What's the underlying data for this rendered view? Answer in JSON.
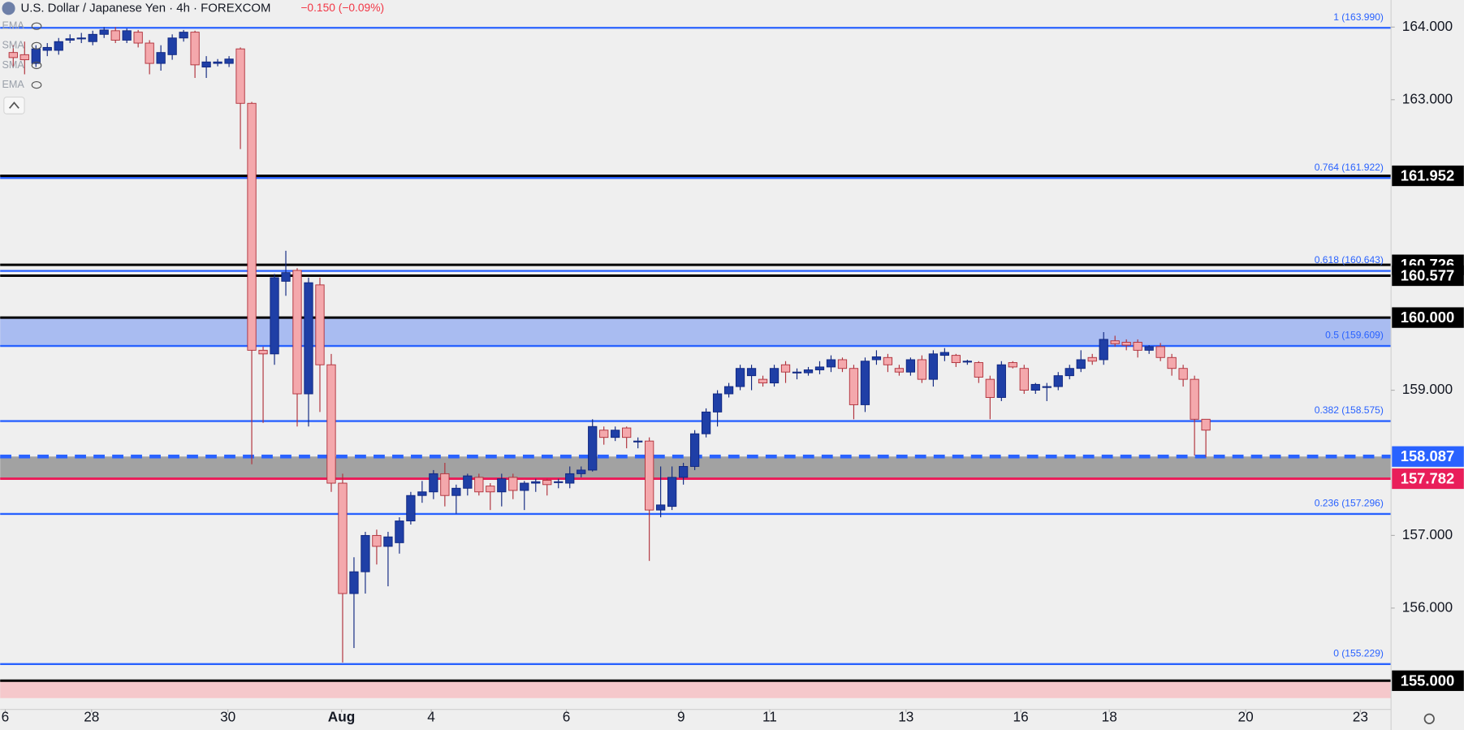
{
  "chart_data": {
    "type": "candlestick",
    "title": "U.S. Dollar / Japanese Yen · 4h · FOREXCOM",
    "subtitle": "−0.150 (−0.09%)",
    "indicators": [
      "EMA",
      "SMA",
      "SMA",
      "EMA"
    ],
    "up_color": "#1f3fa6",
    "up_border": "#0f2680",
    "down_color": "#f4a8ac",
    "down_border": "#b0303a",
    "x": [
      0,
      1,
      2,
      3,
      4,
      5,
      6,
      7,
      8,
      9,
      10,
      11,
      12,
      13,
      14,
      15,
      16,
      17,
      18,
      19,
      20,
      21,
      22,
      23,
      24,
      25,
      26,
      27,
      28,
      29,
      30,
      31,
      32,
      33,
      34,
      35,
      36,
      37,
      38,
      39,
      40,
      41,
      42,
      43,
      44,
      45,
      46,
      47,
      48,
      49,
      50,
      51,
      52,
      53,
      54,
      55,
      56,
      57,
      58,
      59,
      60,
      61,
      62,
      63,
      64,
      65,
      66,
      67,
      68,
      69,
      70,
      71,
      72,
      73,
      74,
      75,
      76,
      77,
      78,
      79,
      80,
      81,
      82,
      83,
      84,
      85,
      86,
      87,
      88,
      89,
      90,
      91,
      92,
      93,
      94,
      95,
      96,
      97,
      98,
      99,
      100,
      101,
      102,
      103,
      104,
      105
    ],
    "open": [
      163.65,
      163.62,
      163.5,
      163.68,
      163.68,
      163.82,
      163.84,
      163.8,
      163.9,
      163.95,
      163.82,
      163.93,
      163.78,
      163.5,
      163.62,
      163.85,
      163.93,
      163.45,
      163.5,
      163.5,
      163.7,
      162.95,
      159.55,
      159.5,
      160.5,
      160.65,
      158.95,
      160.45,
      159.35,
      157.72,
      156.2,
      156.5,
      157.0,
      156.85,
      156.9,
      157.2,
      157.55,
      157.6,
      157.85,
      157.55,
      157.65,
      157.8,
      157.68,
      157.6,
      157.8,
      157.62,
      157.72,
      157.76,
      157.74,
      157.72,
      157.85,
      157.9,
      158.45,
      158.35,
      158.48,
      158.3,
      158.3,
      157.35,
      157.4,
      157.8,
      157.95,
      158.4,
      158.7,
      158.95,
      159.05,
      159.2,
      159.15,
      159.1,
      159.35,
      159.25,
      159.24,
      159.28,
      159.32,
      159.42,
      159.3,
      158.8,
      159.42,
      159.45,
      159.3,
      159.25,
      159.42,
      159.15,
      159.48,
      159.48,
      159.4,
      159.38,
      159.15,
      158.9,
      159.38,
      159.3,
      159.0,
      159.05,
      159.05,
      159.2,
      159.3,
      159.45,
      159.42,
      159.68,
      159.66,
      159.66,
      159.55,
      159.6,
      159.45,
      159.3,
      159.15,
      158.6
    ],
    "high": [
      163.75,
      163.8,
      163.75,
      163.78,
      163.85,
      163.9,
      163.92,
      163.95,
      164.0,
      164.0,
      163.98,
      163.96,
      163.82,
      163.75,
      163.9,
      163.96,
      163.95,
      163.6,
      163.56,
      163.6,
      163.72,
      162.97,
      159.6,
      160.6,
      160.92,
      160.68,
      160.55,
      160.55,
      159.5,
      157.85,
      156.7,
      157.05,
      157.08,
      157.05,
      157.25,
      157.6,
      157.75,
      157.9,
      158.0,
      157.7,
      157.85,
      157.85,
      157.72,
      157.85,
      157.85,
      157.75,
      157.78,
      157.78,
      157.78,
      157.95,
      157.95,
      158.6,
      158.5,
      158.5,
      158.5,
      158.35,
      158.35,
      157.95,
      157.95,
      158.0,
      158.45,
      158.75,
      159.0,
      159.1,
      159.35,
      159.35,
      159.2,
      159.35,
      159.4,
      159.3,
      159.32,
      159.4,
      159.48,
      159.45,
      159.35,
      159.45,
      159.55,
      159.5,
      159.35,
      159.45,
      159.48,
      159.55,
      159.58,
      159.5,
      159.42,
      159.4,
      159.2,
      159.4,
      159.4,
      159.35,
      159.1,
      159.1,
      159.25,
      159.35,
      159.55,
      159.5,
      159.8,
      159.75,
      159.7,
      159.7,
      159.62,
      159.65,
      159.5,
      159.35,
      159.2,
      158.6
    ],
    "low": [
      163.45,
      163.35,
      163.45,
      163.6,
      163.62,
      163.78,
      163.78,
      163.75,
      163.85,
      163.78,
      163.78,
      163.72,
      163.35,
      163.4,
      163.55,
      163.8,
      163.3,
      163.3,
      163.46,
      163.45,
      162.32,
      157.98,
      158.55,
      159.35,
      160.3,
      158.5,
      158.5,
      158.7,
      157.6,
      155.25,
      155.45,
      156.2,
      156.6,
      156.3,
      156.75,
      157.15,
      157.45,
      157.5,
      157.4,
      157.3,
      157.55,
      157.55,
      157.35,
      157.4,
      157.5,
      157.35,
      157.6,
      157.55,
      157.65,
      157.65,
      157.8,
      157.88,
      158.25,
      158.3,
      158.2,
      158.2,
      156.65,
      157.25,
      157.35,
      157.7,
      157.9,
      158.35,
      158.5,
      158.9,
      159.0,
      159.0,
      159.05,
      159.05,
      159.1,
      159.15,
      159.2,
      159.22,
      159.25,
      159.25,
      158.6,
      158.7,
      159.35,
      159.25,
      159.2,
      159.2,
      159.1,
      159.05,
      159.4,
      159.32,
      159.35,
      159.1,
      158.6,
      158.85,
      159.3,
      158.95,
      158.95,
      158.85,
      159.0,
      159.15,
      159.25,
      159.35,
      159.35,
      159.6,
      159.55,
      159.45,
      159.5,
      159.4,
      159.2,
      159.05,
      158.1,
      158.08
    ],
    "close": [
      163.58,
      163.55,
      163.7,
      163.72,
      163.8,
      163.84,
      163.85,
      163.9,
      163.96,
      163.82,
      163.95,
      163.78,
      163.5,
      163.65,
      163.85,
      163.93,
      163.48,
      163.52,
      163.52,
      163.56,
      162.95,
      159.55,
      159.5,
      160.55,
      160.62,
      158.95,
      160.48,
      159.35,
      157.72,
      156.2,
      156.5,
      157.0,
      156.85,
      156.98,
      157.2,
      157.55,
      157.6,
      157.85,
      157.55,
      157.65,
      157.82,
      157.6,
      157.6,
      157.78,
      157.62,
      157.72,
      157.74,
      157.7,
      157.74,
      157.85,
      157.9,
      158.5,
      158.35,
      158.45,
      158.35,
      158.3,
      157.35,
      157.42,
      157.8,
      157.95,
      158.4,
      158.7,
      158.95,
      159.05,
      159.3,
      159.3,
      159.1,
      159.3,
      159.25,
      159.25,
      159.28,
      159.32,
      159.42,
      159.3,
      158.8,
      159.4,
      159.46,
      159.35,
      159.25,
      159.42,
      159.15,
      159.5,
      159.52,
      159.38,
      159.4,
      159.18,
      158.9,
      159.35,
      159.32,
      159.0,
      159.08,
      159.05,
      159.2,
      159.3,
      159.42,
      159.4,
      159.7,
      159.64,
      159.62,
      159.55,
      159.6,
      159.45,
      159.3,
      159.15,
      158.6,
      158.45
    ],
    "xlim": [
      -1.15,
      121.3
    ],
    "xticks": [
      {
        "value": -0.7,
        "label": "6"
      },
      {
        "value": 6.9,
        "label": "28"
      },
      {
        "value": 18.9,
        "label": "30"
      },
      {
        "value": 28.9,
        "label": "Aug"
      },
      {
        "value": 36.8,
        "label": "4"
      },
      {
        "value": 48.7,
        "label": "6"
      },
      {
        "value": 58.8,
        "label": "9"
      },
      {
        "value": 66.6,
        "label": "11"
      },
      {
        "value": 78.6,
        "label": "13"
      },
      {
        "value": 88.7,
        "label": "16"
      },
      {
        "value": 96.5,
        "label": "18"
      },
      {
        "value": 108.5,
        "label": "20"
      },
      {
        "value": 118.6,
        "label": "23"
      }
    ],
    "ylim": [
      154.604,
      164.373
    ],
    "yticks": [
      {
        "value": 164,
        "label": "164.000"
      },
      {
        "value": 163,
        "label": "163.000"
      },
      {
        "value": 159,
        "label": "159.000"
      },
      {
        "value": 157,
        "label": "157.000"
      },
      {
        "value": 156,
        "label": "156.000"
      }
    ],
    "fib_color": "#2962ff",
    "fib_levels": [
      {
        "value": 163.99,
        "label": "1 (163.990)"
      },
      {
        "value": 161.922,
        "label": "0.764 (161.922)"
      },
      {
        "value": 160.643,
        "label": "0.618 (160.643)"
      },
      {
        "value": 159.609,
        "label": "0.5 (159.609)"
      },
      {
        "value": 158.575,
        "label": "0.382 (158.575)"
      },
      {
        "value": 157.296,
        "label": "0.236 (157.296)"
      },
      {
        "value": 155.229,
        "label": "0 (155.229)"
      }
    ],
    "zones": [
      {
        "from": 159.609,
        "to": 160.0,
        "color": "#a9bcf1"
      },
      {
        "from": 157.782,
        "to": 158.087,
        "color": "#a2a2a2"
      },
      {
        "from": 154.76,
        "to": 155.0,
        "color": "#f5c8cb"
      }
    ],
    "price_lines": [
      {
        "value": 161.952,
        "label": "161.952",
        "color": "#000000",
        "style": "solid"
      },
      {
        "value": 160.726,
        "label": "160.726",
        "color": "#000000",
        "style": "solid"
      },
      {
        "value": 160.577,
        "label": "160.577",
        "color": "#000000",
        "style": "solid"
      },
      {
        "value": 160.0,
        "label": "160.000",
        "color": "#000000",
        "style": "solid"
      },
      {
        "value": 158.087,
        "label": "158.087",
        "color": "#2962ff",
        "style": "dashed"
      },
      {
        "value": 157.782,
        "label": "157.782",
        "color": "#e91e5a",
        "style": "solid"
      },
      {
        "value": 155.0,
        "label": "155.000",
        "color": "#000000",
        "style": "solid"
      }
    ]
  }
}
